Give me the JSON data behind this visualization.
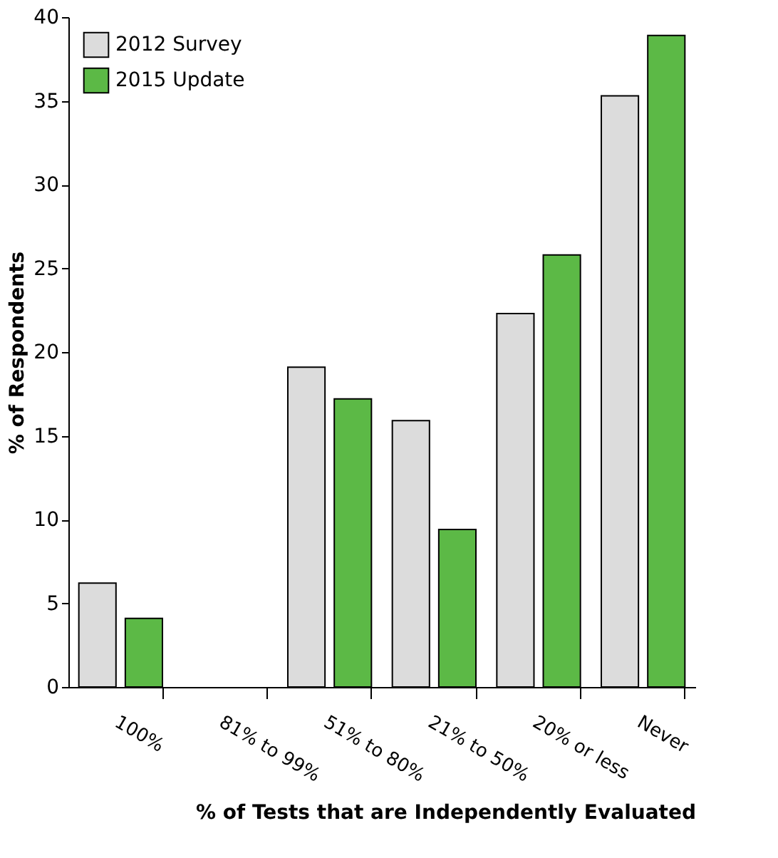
{
  "chart_data": {
    "type": "bar",
    "xlabel": "% of Tests that are Independently Evaluated",
    "ylabel": "% of Respondents",
    "categories": [
      "100%",
      "81% to 99%",
      "51% to 80%",
      "21% to 50%",
      "20% or less",
      "Never"
    ],
    "series": [
      {
        "name": "2012 Survey",
        "color": "#dcdcdc",
        "values": [
          6.2,
          null,
          19.1,
          15.9,
          22.3,
          35.3
        ]
      },
      {
        "name": "2015 Update",
        "color": "#5cb946",
        "values": [
          4.1,
          null,
          17.2,
          9.4,
          25.8,
          38.9
        ]
      }
    ],
    "ylim": [
      0,
      40
    ],
    "yticks": [
      0,
      5,
      10,
      15,
      20,
      25,
      30,
      35,
      40
    ],
    "grid": false,
    "legend": "top left"
  }
}
